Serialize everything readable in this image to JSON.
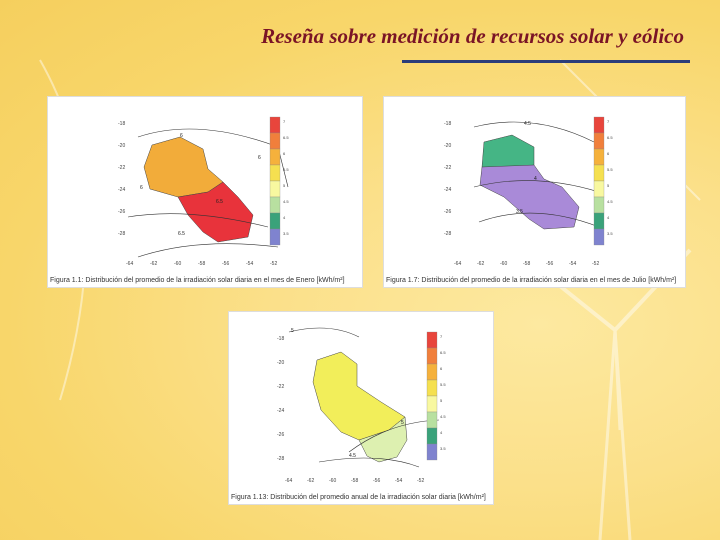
{
  "title": "Reseña sobre medición de recursos solar y eólico",
  "figures": [
    {
      "caption": "Figura 1.1: Distribución del promedio de la irradiación solar diaria en el mes de Enero [kWh/m²]",
      "lat_ticks": [
        "-18",
        "-20",
        "-22",
        "-24",
        "-26",
        "-28"
      ],
      "lon_ticks": [
        "-64",
        "-62",
        "-60",
        "-58",
        "-56",
        "-54",
        "-52"
      ],
      "isolines": [
        "6",
        "6",
        "6",
        "6.5",
        "6.5"
      ],
      "scale_labels": [
        "7",
        "6.5",
        "6",
        "5.5",
        "5",
        "4.5",
        "4",
        "3.5"
      ],
      "colors": {
        "north": "#f2ac3a",
        "south": "#e8333b"
      }
    },
    {
      "caption": "Figura 1.7: Distribución del promedio de la irradiación solar diaria en el mes de Julio [kWh/m²]",
      "lat_ticks": [
        "-18",
        "-20",
        "-22",
        "-24",
        "-26",
        "-28"
      ],
      "lon_ticks": [
        "-64",
        "-62",
        "-60",
        "-58",
        "-56",
        "-54",
        "-52"
      ],
      "isolines": [
        "4.5",
        "4",
        "3.5"
      ],
      "scale_labels": [
        "7",
        "6.5",
        "6",
        "5.5",
        "5",
        "4.5",
        "4",
        "3.5"
      ],
      "colors": {
        "north": "#45b585",
        "south": "#a98ad8"
      }
    },
    {
      "caption": "Figura 1.13: Distribución del promedio anual de la irradiación solar diaria [kWh/m²]",
      "lat_ticks": [
        "-18",
        "-20",
        "-22",
        "-24",
        "-26",
        "-28"
      ],
      "lon_ticks": [
        "-64",
        "-62",
        "-60",
        "-58",
        "-56",
        "-54",
        "-52"
      ],
      "isolines": [
        "5",
        "5",
        "4.5"
      ],
      "scale_labels": [
        "7",
        "6.5",
        "6",
        "5.5",
        "5",
        "4.5",
        "4",
        "3.5"
      ],
      "colors": {
        "north": "#f2ee5a",
        "south": "#ddf0b0"
      }
    }
  ],
  "scale_colors": [
    "#e8453c",
    "#f07f3c",
    "#f5b13c",
    "#f5e050",
    "#f8f8a0",
    "#b8e0a0",
    "#3aa27a",
    "#7f83cf"
  ]
}
